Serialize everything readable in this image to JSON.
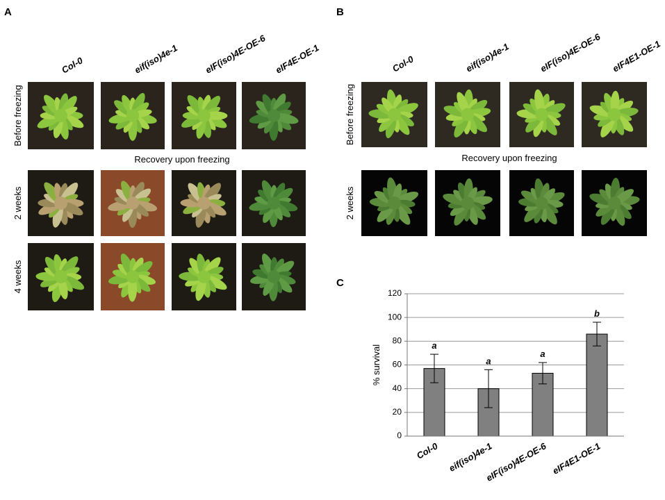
{
  "panel_a": {
    "label": "A",
    "columns": [
      "Col-0",
      "eif(iso)4e-1",
      "eIF(iso)4E-OE-6",
      "eIF4E-OE-1"
    ],
    "rows": [
      "Before freezing",
      "2 weeks",
      "4 weeks"
    ],
    "section": "Recovery upon freezing"
  },
  "panel_b": {
    "label": "B",
    "columns": [
      "Col-0",
      "eif(iso)4e-1",
      "eIF(iso)4E-OE-6",
      "eIF4E1-OE-1"
    ],
    "rows": [
      "Before freezing",
      "2 weeks"
    ],
    "section": "Recovery upon freezing"
  },
  "chart_data": {
    "type": "bar",
    "panel_label": "C",
    "ylabel": "% survival",
    "categories": [
      "Col-0",
      "eif(iso)4e-1",
      "eIF(iso)4E-OE-6",
      "eIF4E1-OE-1"
    ],
    "values": [
      57,
      40,
      53,
      86
    ],
    "errors": [
      12,
      16,
      9,
      10
    ],
    "annotations": [
      "a",
      "a",
      "a",
      "b"
    ],
    "color": "#808080",
    "ylim": [
      0,
      120
    ],
    "yticks": [
      0,
      20,
      40,
      60,
      80,
      100,
      120
    ],
    "grid": true
  }
}
